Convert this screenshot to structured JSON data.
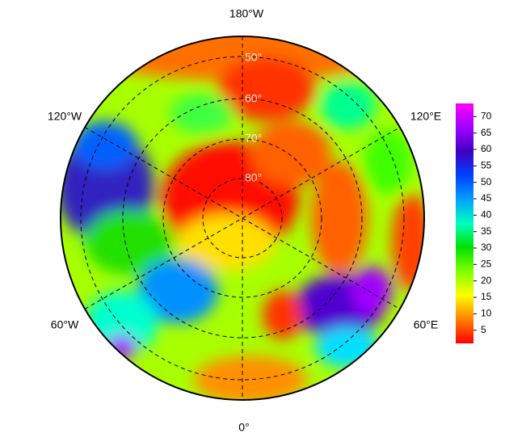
{
  "map": {
    "lon_labels": [
      "180°W",
      "120°W",
      "120°E",
      "60°W",
      "60°E",
      "0°"
    ],
    "lat_labels": [
      "50°",
      "60°",
      "70°",
      "80°"
    ],
    "colorbar": {
      "lim": [
        1,
        74
      ],
      "ticks": [
        5,
        10,
        15,
        20,
        25,
        30,
        35,
        40,
        45,
        50,
        55,
        60,
        65,
        70
      ],
      "colors": [
        "#ff0000",
        "#ff8000",
        "#ffff00",
        "#80ff00",
        "#00e000",
        "#00ffc0",
        "#00a0ff",
        "#0040ff",
        "#4000c0",
        "#a000ff",
        "#ff00ff"
      ]
    }
  }
}
